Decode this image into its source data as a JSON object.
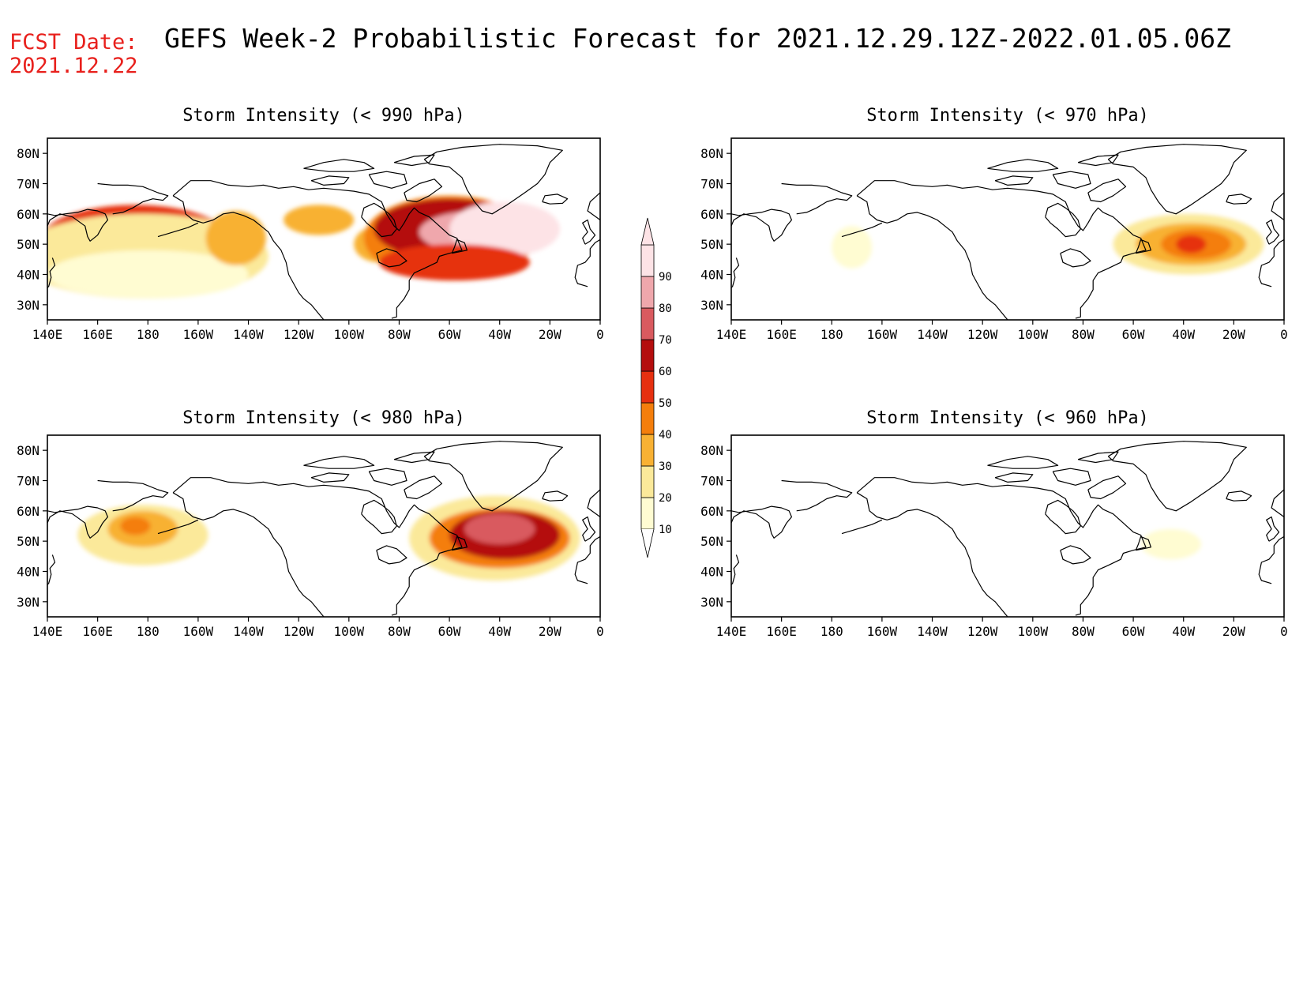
{
  "fcst_label": "FCST Date:",
  "fcst_date": "2021.12.22",
  "title": "GEFS Week-2 Probabilistic Forecast for 2021.12.29.12Z-2022.01.05.06Z",
  "x_ticks": [
    "140E",
    "160E",
    "180",
    "160W",
    "140W",
    "120W",
    "100W",
    "80W",
    "60W",
    "40W",
    "20W",
    "0"
  ],
  "y_ticks": [
    "80N",
    "70N",
    "60N",
    "50N",
    "40N",
    "30N"
  ],
  "colorbar": {
    "levels": [
      "10",
      "20",
      "30",
      "40",
      "50",
      "60",
      "70",
      "80",
      "90"
    ],
    "colors": [
      "#fffcd2",
      "#fbe99a",
      "#f8b133",
      "#f47e0c",
      "#e63010",
      "#b40e0e",
      "#d95a5f",
      "#efa7ac",
      "#fde3e6"
    ]
  },
  "panels": [
    {
      "title": "Storm Intensity (< 990 hPa)",
      "blobs": [
        {
          "lon": 175,
          "lat": 51,
          "rlon": 38,
          "rlat": 12,
          "level": 5
        },
        {
          "lon": 172,
          "lat": 53,
          "rlon": 22,
          "rlat": 7,
          "level": 6
        },
        {
          "lon": 168,
          "lat": 52,
          "rlon": 10,
          "rlat": 4,
          "level": 7
        },
        {
          "lon": 178,
          "lat": 46,
          "rlon": 50,
          "rlat": 14,
          "level": 2
        },
        {
          "lon": 180,
          "lat": 40,
          "rlon": 40,
          "rlat": 8,
          "level": 1
        },
        {
          "lon": 215,
          "lat": 52,
          "rlon": 12,
          "rlat": 9,
          "level": 3
        },
        {
          "lon": 248,
          "lat": 58,
          "rlon": 14,
          "rlat": 5,
          "level": 3
        },
        {
          "lon": 272,
          "lat": 50,
          "rlon": 10,
          "rlat": 6,
          "level": 3
        },
        {
          "lon": 300,
          "lat": 52,
          "rlon": 34,
          "rlat": 14,
          "level": 4
        },
        {
          "lon": 300,
          "lat": 55,
          "rlon": 30,
          "rlat": 10,
          "level": 6
        },
        {
          "lon": 312,
          "lat": 54,
          "rlon": 24,
          "rlat": 7,
          "level": 8
        },
        {
          "lon": 322,
          "lat": 55,
          "rlon": 22,
          "rlat": 9,
          "level": 9
        },
        {
          "lon": 302,
          "lat": 44,
          "rlon": 30,
          "rlat": 6,
          "level": 5
        }
      ]
    },
    {
      "title": "Storm Intensity (< 970 hPa)",
      "blobs": [
        {
          "lon": 188,
          "lat": 49,
          "rlon": 8,
          "rlat": 7,
          "level": 1
        },
        {
          "lon": 322,
          "lat": 50,
          "rlon": 30,
          "rlat": 10,
          "level": 2
        },
        {
          "lon": 323,
          "lat": 50,
          "rlon": 22,
          "rlat": 7,
          "level": 3
        },
        {
          "lon": 325,
          "lat": 50,
          "rlon": 14,
          "rlat": 5,
          "level": 4
        },
        {
          "lon": 323,
          "lat": 50,
          "rlon": 6,
          "rlat": 3,
          "level": 5
        }
      ]
    },
    {
      "title": "Storm Intensity (< 980 hPa)",
      "blobs": [
        {
          "lon": 178,
          "lat": 52,
          "rlon": 26,
          "rlat": 10,
          "level": 2
        },
        {
          "lon": 178,
          "lat": 54,
          "rlon": 14,
          "rlat": 6,
          "level": 3
        },
        {
          "lon": 175,
          "lat": 55,
          "rlon": 6,
          "rlat": 3,
          "level": 4
        },
        {
          "lon": 318,
          "lat": 51,
          "rlon": 34,
          "rlat": 14,
          "level": 2
        },
        {
          "lon": 320,
          "lat": 51,
          "rlon": 28,
          "rlat": 10,
          "level": 4
        },
        {
          "lon": 322,
          "lat": 52,
          "rlon": 22,
          "rlat": 8,
          "level": 6
        },
        {
          "lon": 320,
          "lat": 54,
          "rlon": 14,
          "rlat": 5,
          "level": 7
        }
      ]
    },
    {
      "title": "Storm Intensity (< 960 hPa)",
      "blobs": [
        {
          "lon": 315,
          "lat": 49,
          "rlon": 12,
          "rlat": 5,
          "level": 1
        }
      ]
    }
  ]
}
